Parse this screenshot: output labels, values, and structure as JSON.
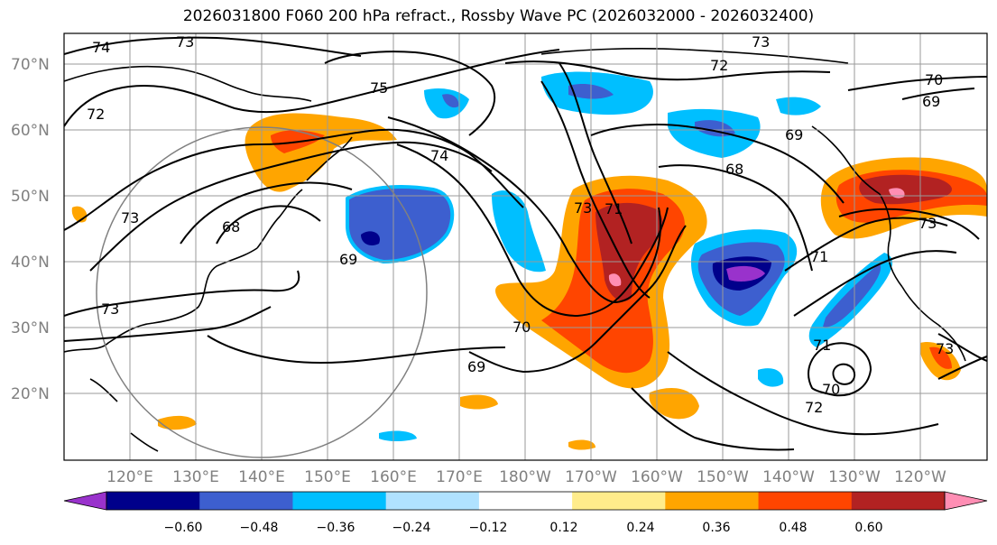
{
  "title": "2026031800 F060 200 hPa refract., Rossby Wave PC (2026032000 - 2026032400)",
  "lat_labels": [
    "70°N",
    "60°N",
    "50°N",
    "40°N",
    "30°N",
    "20°N"
  ],
  "lat_values": [
    70,
    60,
    50,
    40,
    30,
    20
  ],
  "lon_labels": [
    "120°E",
    "130°E",
    "140°E",
    "150°E",
    "160°E",
    "170°E",
    "180°W",
    "170°W",
    "160°W",
    "150°W",
    "140°W",
    "130°W",
    "120°W"
  ],
  "colorbar": {
    "colors": [
      "#9932cc",
      "#00008b",
      "#3d5fcf",
      "#00bfff",
      "#b0e2ff",
      "#ffffff",
      "#ffec8b",
      "#ffa500",
      "#ff4500",
      "#b22222",
      "#ff8eb4"
    ],
    "labels": [
      "−0.60",
      "−0.48",
      "−0.36",
      "−0.24",
      "−0.12",
      "0.12",
      "0.24",
      "0.36",
      "0.48",
      "0.60"
    ]
  },
  "contour_labels": [
    "74",
    "73",
    "73",
    "72",
    "70",
    "69",
    "75",
    "72",
    "74",
    "69",
    "68",
    "73",
    "68",
    "69",
    "73",
    "71",
    "73",
    "70",
    "69",
    "71",
    "71",
    "73",
    "70",
    "72",
    "73"
  ]
}
